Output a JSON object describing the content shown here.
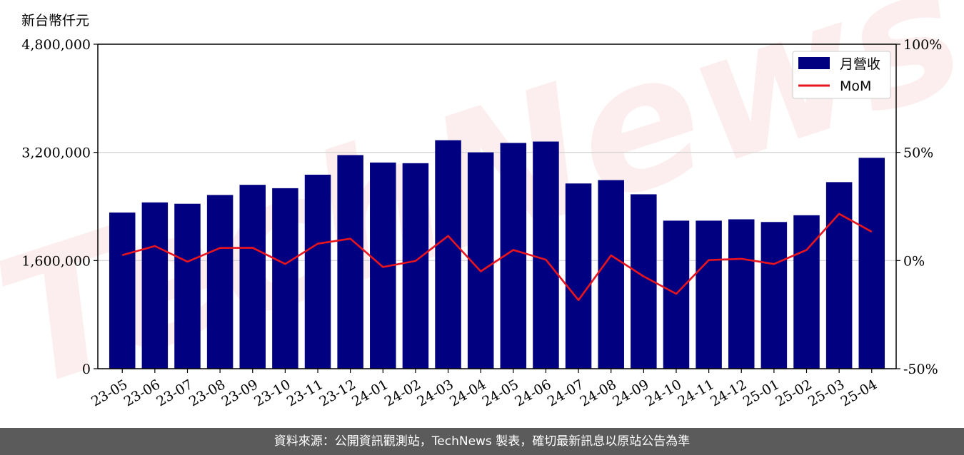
{
  "chart_data": {
    "type": "bar",
    "ylabel": "新台幣仟元",
    "categories": [
      "23-05",
      "23-06",
      "23-07",
      "23-08",
      "23-09",
      "23-10",
      "23-11",
      "23-12",
      "24-01",
      "24-02",
      "24-03",
      "24-04",
      "24-05",
      "24-06",
      "24-07",
      "24-08",
      "24-09",
      "24-10",
      "24-11",
      "24-12",
      "25-01",
      "25-02",
      "25-03",
      "25-04"
    ],
    "series": [
      {
        "name": "月營收",
        "axis": "left",
        "color": "#000080",
        "values": [
          2310000,
          2460000,
          2440000,
          2570000,
          2720000,
          2670000,
          2870000,
          3160000,
          3050000,
          3040000,
          3380000,
          3200000,
          3340000,
          3360000,
          2740000,
          2790000,
          2580000,
          2190000,
          2190000,
          2210000,
          2170000,
          2270000,
          2760000,
          3120000
        ]
      },
      {
        "name": "MoM",
        "axis": "right",
        "type": "line",
        "color": "#e8141e",
        "values": [
          2.5,
          6.7,
          -0.5,
          5.8,
          5.9,
          -1.6,
          7.8,
          10.1,
          -3.0,
          -0.2,
          11.4,
          -5.0,
          4.9,
          0.4,
          -18.3,
          2.4,
          -7.3,
          -15.4,
          0.2,
          0.8,
          -1.6,
          4.9,
          21.6,
          13.3
        ]
      }
    ],
    "yticks_left": [
      "0",
      "1,600,000",
      "3,200,000",
      "4,800,000"
    ],
    "yticks_right": [
      "-50%",
      "0%",
      "50%",
      "100%"
    ],
    "ylim_left": [
      0,
      4800000
    ],
    "ylim_right": [
      -50,
      100
    ],
    "grid": "horizontal",
    "legend": "top-right"
  },
  "watermark": "TechNews",
  "footer": {
    "source_text": "資料來源：公開資訊觀測站，TechNews 製表，確切最新訊息以原站公告為準"
  }
}
